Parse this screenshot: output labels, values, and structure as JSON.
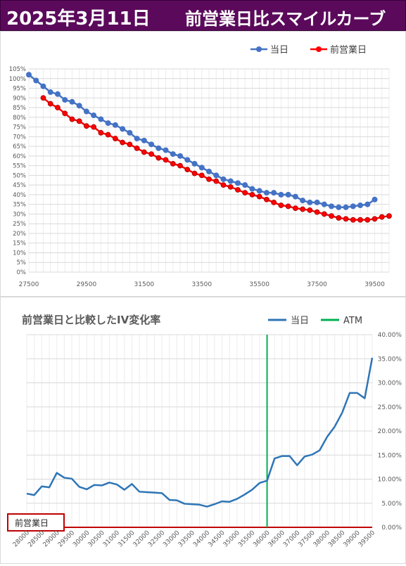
{
  "header": {
    "date": "2025年3月11日",
    "title": "前営業日比スマイルカーブ"
  },
  "chart_data": [
    {
      "type": "line",
      "title": "",
      "legend": "top-right",
      "grid": true,
      "x_ticks": [
        "27500",
        "29500",
        "31500",
        "33500",
        "35500",
        "37500",
        "39500"
      ],
      "y_ticks": [
        "0%",
        "5%",
        "10%",
        "15%",
        "20%",
        "25%",
        "30%",
        "35%",
        "40%",
        "45%",
        "50%",
        "55%",
        "60%",
        "65%",
        "70%",
        "75%",
        "80%",
        "85%",
        "90%",
        "95%",
        "100%",
        "105%"
      ],
      "xlim": [
        27500,
        40000
      ],
      "ylim": [
        0,
        105
      ],
      "colors": {
        "当日": "#4472c4",
        "前営業日": "#ff0000"
      },
      "series": [
        {
          "name": "当日",
          "x": [
            27500,
            27750,
            28000,
            28250,
            28500,
            28750,
            29000,
            29250,
            29500,
            29750,
            30000,
            30250,
            30500,
            30750,
            31000,
            31250,
            31500,
            31750,
            32000,
            32250,
            32500,
            32750,
            33000,
            33250,
            33500,
            33750,
            34000,
            34250,
            34500,
            34750,
            35000,
            35250,
            35500,
            35750,
            36000,
            36250,
            36500,
            36750,
            37000,
            37250,
            37500,
            37750,
            38000,
            38250,
            38500,
            38750,
            39000,
            39250,
            39500
          ],
          "values": [
            102,
            99,
            96,
            93,
            92,
            89,
            88,
            86,
            83,
            81,
            79,
            77,
            76,
            74,
            72,
            69,
            68,
            66,
            64,
            63,
            61,
            60,
            58,
            56,
            54,
            52,
            50,
            48,
            47,
            46,
            45,
            43,
            42,
            41,
            41,
            40,
            40,
            39,
            37,
            36,
            36,
            35,
            34,
            33.5,
            33.5,
            34,
            34.5,
            35,
            37.5
          ]
        },
        {
          "name": "前営業日",
          "x": [
            28000,
            28250,
            28500,
            28750,
            29000,
            29250,
            29500,
            29750,
            30000,
            30250,
            30500,
            30750,
            31000,
            31250,
            31500,
            31750,
            32000,
            32250,
            32500,
            32750,
            33000,
            33250,
            33500,
            33750,
            34000,
            34250,
            34500,
            34750,
            35000,
            35250,
            35500,
            35750,
            36000,
            36250,
            36500,
            36750,
            37000,
            37250,
            37500,
            37750,
            38000,
            38250,
            38500,
            38750,
            39000,
            39250,
            39500,
            39750,
            40000
          ],
          "values": [
            90,
            87,
            85,
            82,
            79,
            78,
            75.5,
            75,
            72,
            71,
            69,
            67,
            66,
            64,
            62,
            61,
            59,
            58,
            56,
            55,
            53,
            51,
            50,
            48,
            47,
            45,
            44,
            42.5,
            41,
            40,
            39,
            37.5,
            36,
            34.5,
            34,
            33,
            32.5,
            32,
            31,
            30,
            29,
            28,
            27.5,
            27,
            27,
            27,
            27.5,
            28.5,
            29
          ]
        }
      ]
    },
    {
      "type": "line",
      "title": "前営業日と比較したIV変化率",
      "legend": "top-right",
      "grid": true,
      "categories": [
        "28000",
        "28500",
        "29000",
        "29500",
        "30000",
        "30500",
        "31000",
        "31500",
        "32000",
        "32500",
        "33000",
        "33500",
        "34000",
        "34500",
        "35000",
        "35500",
        "36000",
        "36500",
        "37000",
        "37500",
        "38000",
        "38500",
        "39000",
        "39500"
      ],
      "y_ticks": [
        "0.00%",
        "5.00%",
        "10.00%",
        "15.00%",
        "20.00%",
        "25.00%",
        "30.00%",
        "35.00%",
        "40.00%"
      ],
      "ylim": [
        0,
        40
      ],
      "colors": {
        "当日": "#2e75b6",
        "ATM": "#00b050",
        "baseline": "#c00000"
      },
      "atm_x": 36000,
      "baseline_label": "前営業日",
      "series": [
        {
          "name": "当日",
          "x": [
            28000,
            28250,
            28500,
            28750,
            29000,
            29250,
            29500,
            29750,
            30000,
            30250,
            30500,
            30750,
            31000,
            31250,
            31500,
            31750,
            32000,
            32250,
            32500,
            32750,
            33000,
            33250,
            33500,
            33750,
            34000,
            34250,
            34500,
            34750,
            35000,
            35250,
            35500,
            35750,
            36000,
            36250,
            36500,
            36750,
            37000,
            37250,
            37500,
            37750,
            38000,
            38250,
            38500,
            38750,
            39000,
            39250,
            39500
          ],
          "values": [
            7.0,
            6.7,
            8.5,
            8.3,
            11.3,
            10.3,
            10.1,
            8.4,
            7.9,
            8.8,
            8.7,
            9.3,
            8.9,
            7.8,
            9.0,
            7.4,
            7.3,
            7.2,
            7.1,
            5.7,
            5.6,
            4.9,
            4.8,
            4.7,
            4.3,
            4.8,
            5.4,
            5.3,
            5.9,
            6.8,
            7.8,
            9.2,
            9.7,
            14.3,
            14.8,
            14.8,
            12.9,
            14.7,
            15.1,
            16.0,
            18.8,
            20.9,
            23.8,
            27.9,
            27.9,
            26.8,
            35.2
          ]
        }
      ]
    }
  ]
}
